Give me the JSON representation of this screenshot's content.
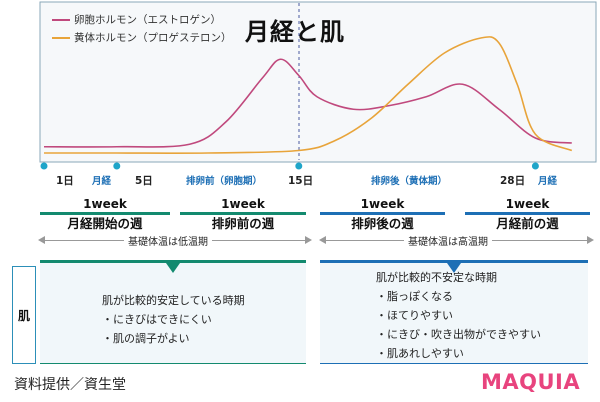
{
  "title": "月経と肌",
  "legend": [
    {
      "label": "卵胞ホルモン（エストロゲン）",
      "color": "#c0497d"
    },
    {
      "label": "黄体ホルモン（プロゲステロン）",
      "color": "#e8a43a"
    }
  ],
  "colors": {
    "green": "#138a6f",
    "blue": "#1d6fb5",
    "teal_dot": "#1fa5c9",
    "panel_bg": "#f1f7fa",
    "brand": "#e8447e"
  },
  "timeline": {
    "day1": "1日",
    "phase_menses": "月経",
    "day5": "5日",
    "phase_pre": "排卵前（卵胞期）",
    "day15": "15日",
    "phase_post": "排卵後（黄体期）",
    "day28": "28日",
    "phase_menses_end": "月経"
  },
  "weeks": [
    {
      "top": "1week",
      "name": "月経開始の週"
    },
    {
      "top": "1week",
      "name": "排卵前の週"
    },
    {
      "top": "1week",
      "name": "排卵後の週"
    },
    {
      "top": "1week",
      "name": "月経前の週"
    }
  ],
  "temperature": {
    "low": "基礎体温は低温期",
    "high": "基礎体温は高温期"
  },
  "skin_label": "肌",
  "panels": {
    "left": {
      "lines": [
        "肌が比較的安定している時期",
        "・にきびはできにくい",
        "・肌の調子がよい"
      ]
    },
    "right": {
      "lines": [
        "肌が比較的不安定な時期",
        "・脂っぽくなる",
        "・ほてりやすい",
        "・にきび・吹き出物ができやすい",
        "・肌あれしやすい"
      ]
    }
  },
  "credit": "資料提供／資生堂",
  "brand": "MAQUIA",
  "chart_data": {
    "type": "line",
    "x_label": "",
    "y_label": "",
    "series": [
      {
        "name": "卵胞ホルモン（エストロゲン）",
        "x": [
          1,
          5,
          9,
          11,
          13,
          14,
          15,
          16,
          18,
          20,
          22,
          24,
          26,
          28,
          30
        ],
        "y": [
          0.05,
          0.05,
          0.07,
          0.25,
          0.6,
          0.75,
          0.62,
          0.45,
          0.35,
          0.38,
          0.45,
          0.55,
          0.35,
          0.12,
          0.08
        ]
      },
      {
        "name": "黄体ホルモン（プロゲステロン）",
        "x": [
          1,
          5,
          10,
          15,
          17,
          19,
          21,
          23,
          25,
          26,
          27,
          28,
          30
        ],
        "y": [
          0.0,
          0.0,
          0.0,
          0.02,
          0.1,
          0.28,
          0.55,
          0.8,
          0.92,
          0.88,
          0.55,
          0.15,
          0.02
        ]
      }
    ]
  }
}
